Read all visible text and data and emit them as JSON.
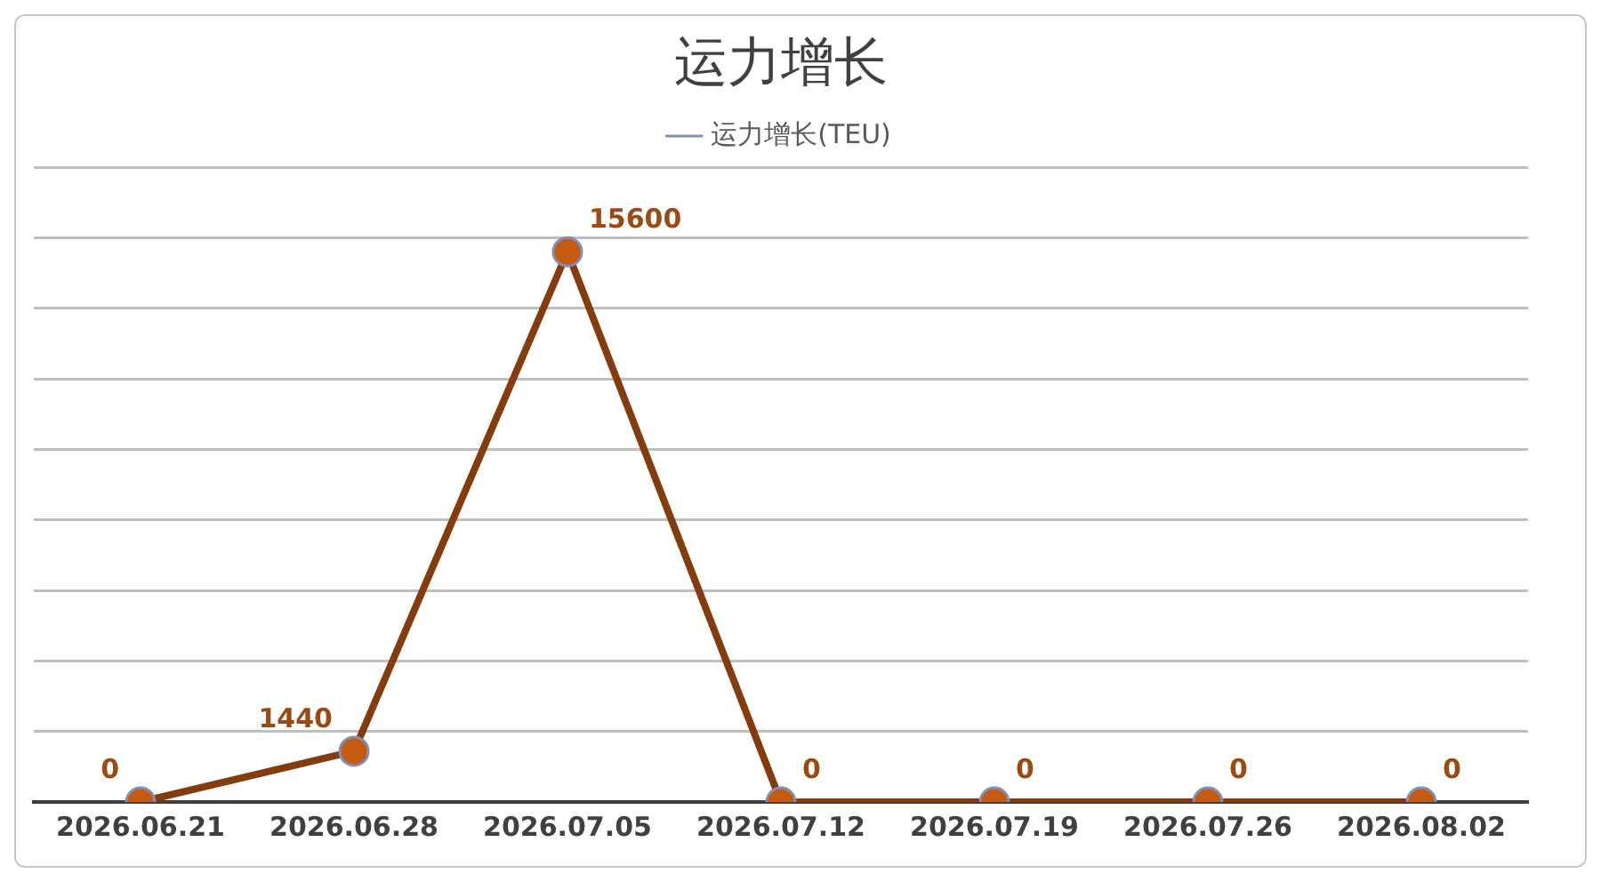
{
  "chart_data": {
    "type": "line",
    "title": "运力增长",
    "categories": [
      "2026.06.21",
      "2026.06.28",
      "2026.07.05",
      "2026.07.12",
      "2026.07.19",
      "2026.07.26",
      "2026.08.02"
    ],
    "series": [
      {
        "name": "运力增长(TEU)",
        "color": "#843c0c",
        "values": [
          0,
          1440,
          15600,
          0,
          0,
          0,
          0
        ]
      }
    ],
    "ylim": [
      0,
      18000
    ],
    "yticks": [
      {
        "value": 0,
        "label": null
      },
      {
        "value": 2000,
        "label": null
      },
      {
        "value": 4000,
        "label": null
      },
      {
        "value": 6000,
        "label": null
      },
      {
        "value": 8000,
        "label": null
      },
      {
        "value": 10000,
        "label": null
      },
      {
        "value": 12000,
        "label": null
      },
      {
        "value": 14000,
        "label": null
      },
      {
        "value": 16000,
        "label": null
      },
      {
        "value": 18000,
        "label": null
      }
    ],
    "tick_labels": "x",
    "grid": "y",
    "legend": "top",
    "marker": "circle",
    "line_style": "solid",
    "data_labels": true
  }
}
